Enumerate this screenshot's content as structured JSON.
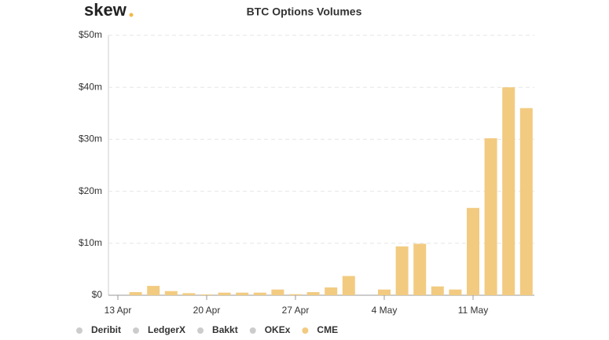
{
  "chart_data": {
    "type": "bar",
    "logo": "skew",
    "title": "BTC Options Volumes",
    "categories": [
      "13 Apr",
      null,
      null,
      null,
      null,
      "20 Apr",
      null,
      null,
      null,
      null,
      "27 Apr",
      null,
      null,
      null,
      null,
      "4 May",
      null,
      null,
      null,
      null,
      "11 May",
      null,
      null,
      null
    ],
    "series": [
      {
        "name": "Deribit",
        "color": "#cccccc",
        "visible": false
      },
      {
        "name": "LedgerX",
        "color": "#cccccc",
        "visible": false
      },
      {
        "name": "Bakkt",
        "color": "#cccccc",
        "visible": false
      },
      {
        "name": "OKEx",
        "color": "#cccccc",
        "visible": false
      },
      {
        "name": "CME",
        "color": "#f2cb81",
        "visible": true,
        "values": [
          0,
          0.6,
          1.8,
          0.8,
          0.4,
          0.15,
          0.5,
          0.5,
          0.5,
          1.1,
          0.2,
          0.6,
          1.5,
          3.7,
          0,
          1.1,
          9.4,
          9.9,
          1.7,
          1.1,
          16.8,
          30.2,
          40,
          36
        ]
      }
    ],
    "ylim": [
      0,
      50
    ],
    "yticks": [
      {
        "value": 0,
        "label": "$0"
      },
      {
        "value": 10,
        "label": "$10m"
      },
      {
        "value": 20,
        "label": "$20m"
      },
      {
        "value": 30,
        "label": "$30m"
      },
      {
        "value": 40,
        "label": "$40m"
      },
      {
        "value": 50,
        "label": "$50m"
      }
    ],
    "grid": true,
    "legend": "bottom-left"
  }
}
